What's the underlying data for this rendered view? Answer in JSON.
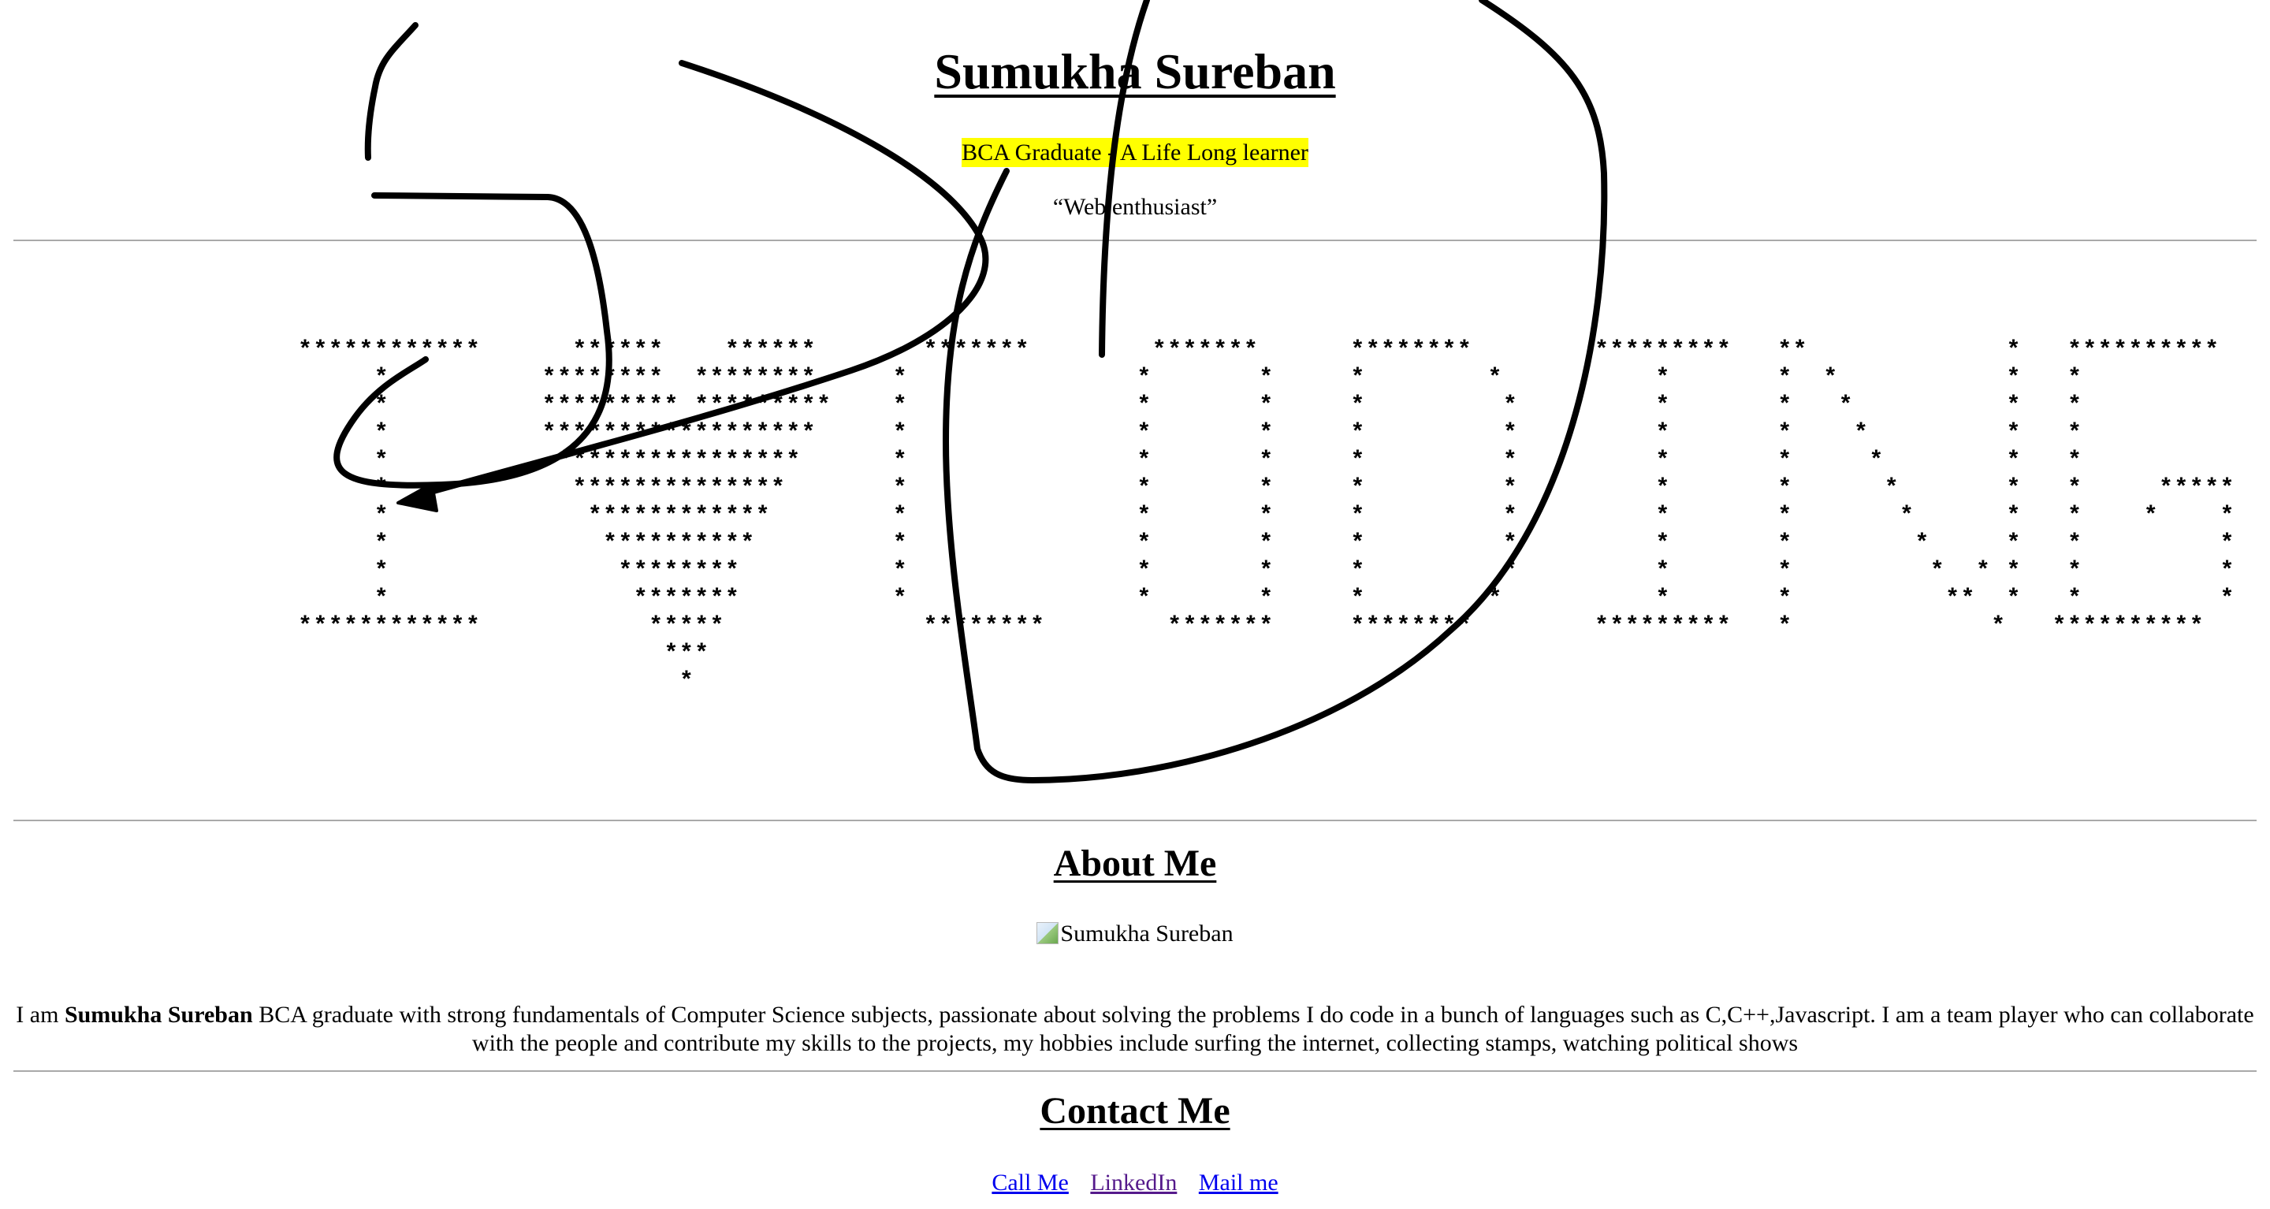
{
  "header": {
    "title": "Sumukha Sureban",
    "subtitle": "BCA Graduate - A Life Long learner",
    "quote": "“Web enthusiast”"
  },
  "banner": {
    "ascii": "************      ******    ******       *******        *******      ********        *********   **             *   **********\n     *          ********  ********     *               *       *     *        *          *       *  *           *   *\n     *          ********* *********    *               *       *     *         *         *       *   *          *   *\n     *          ******************     *               *       *     *         *         *       *    *         *   *\n     *           ****************      *               *       *     *         *         *       *     *        *   *\n     *            **************       *               *       *     *         *         *       *      *       *   *     *****\n     *             ************        *               *       *     *         *         *       *       *      *   *    *    *\n     *              **********         *               *       *     *         *         *       *        *     *   *         *\n     *               ********          *               *       *     *         *         *       *         *  * *   *         *\n     *                *******          *               *       *     *        *          *       *          **  *   *         *\n************           *****             ********        *******     ********        *********   *             *   **********\n                        ***\n                         *"
  },
  "about": {
    "heading": "About Me",
    "photo_alt": "Sumukha Sureban",
    "bio_intro": "I am ",
    "bio_name": "Sumukha Sureban",
    "bio_rest": " BCA graduate with strong fundamentals of Computer Science subjects, passionate about solving the problems I do code in a bunch of languages such as C,C++,Javascript. I am a team player who can collaborate with the people and contribute my skills to the projects, my hobbies include surfing the internet, collecting stamps, watching political shows"
  },
  "contact": {
    "heading": "Contact Me",
    "links": [
      {
        "label": "Call Me"
      },
      {
        "label": "LinkedIn"
      },
      {
        "label": "Mail me"
      }
    ]
  },
  "colors": {
    "highlight": "#ffff00",
    "link": "#0000ee",
    "link_visited": "#551a8b",
    "rule": "#a9a9a9",
    "ink": "#000000"
  }
}
